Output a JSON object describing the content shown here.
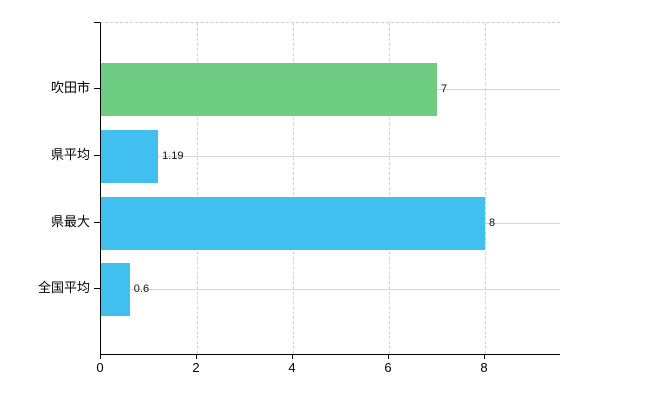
{
  "chart_data": {
    "type": "bar",
    "orientation": "horizontal",
    "title": "",
    "categories": [
      "吹田市",
      "県平均",
      "県最大",
      "全国平均"
    ],
    "values": [
      7,
      1.19,
      8,
      0.6
    ],
    "value_labels": [
      "7",
      "1.19",
      "8",
      "0.6"
    ],
    "bar_colors": [
      "#6ecd82",
      "#41bfef",
      "#41bfef",
      "#41bfef"
    ],
    "x_ticks": [
      0,
      2,
      4,
      6,
      8
    ],
    "x_tick_labels": [
      "0",
      "2",
      "4",
      "6",
      "8"
    ],
    "xlim": [
      0,
      9.55
    ],
    "grid": true,
    "legend": "none",
    "colors": {
      "bar_green": "#6ecd82",
      "bar_blue": "#41bfef",
      "gridline": "#d4d4d4",
      "axis": "#000000",
      "background": "#ffffff",
      "text": "#000000"
    }
  }
}
